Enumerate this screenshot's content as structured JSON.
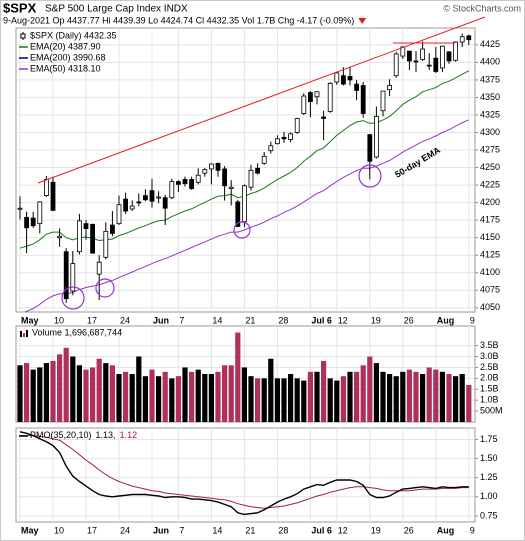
{
  "chart_data": [
    {
      "type": "candlestick",
      "title": "$SPX",
      "subtitle": "S&P 500 Large Cap Index INDX",
      "source": "© StockCharts.com",
      "quote": "9-Aug-2021   Op 4437.77   Hi 4439.39   Lo 4424.74   Cl 4432.35   Vol 1.7B   Chg -4.17 (-0.09%)",
      "name": "$SPX (Daily) 4432.35",
      "color": "#000000",
      "annotation": "50-day EMA",
      "annotation_color": "#9932cc",
      "categories": [
        "May",
        null,
        null,
        null,
        null,
        "10",
        null,
        null,
        null,
        null,
        "17",
        null,
        null,
        null,
        null,
        "24",
        null,
        null,
        null,
        null,
        "Jun",
        null,
        null,
        null,
        "7",
        null,
        null,
        null,
        null,
        "14",
        null,
        null,
        null,
        null,
        "21",
        null,
        null,
        null,
        null,
        "28",
        null,
        null,
        null,
        null,
        "Jul 6",
        null,
        null,
        null,
        "12",
        null,
        null,
        null,
        null,
        "19",
        null,
        null,
        null,
        null,
        "26",
        null,
        null,
        null,
        null,
        "Aug",
        null,
        null,
        null,
        null,
        "9"
      ],
      "open": [
        4191,
        4179,
        4178,
        4170,
        4210,
        4229,
        4150,
        4130,
        4074,
        4130,
        4170,
        4169,
        4098,
        4122,
        4168,
        4170,
        4205,
        4191,
        4201,
        4210,
        4217,
        4207,
        4207,
        4207,
        4230,
        4233,
        4233,
        4229,
        4242,
        4248,
        4256,
        4248,
        4220,
        4201,
        4173,
        4222,
        4249,
        4256,
        4274,
        4284,
        4293,
        4290,
        4300,
        4327,
        4357,
        4351,
        4322,
        4330,
        4372,
        4381,
        4380,
        4369,
        4367,
        4297,
        4265,
        4331,
        4361,
        4381,
        4409,
        4416,
        4402,
        4404,
        4396,
        4406,
        4392,
        4415,
        4403,
        4429,
        4437.77
      ],
      "high": [
        4209,
        4187,
        4187,
        4202,
        4238,
        4237,
        4163,
        4135,
        4131,
        4184,
        4175,
        4170,
        4125,
        4172,
        4188,
        4210,
        4214,
        4203,
        4213,
        4219,
        4234,
        4216,
        4211,
        4234,
        4232,
        4237,
        4237,
        4249,
        4249,
        4256,
        4257,
        4252,
        4232,
        4204,
        4226,
        4254,
        4256,
        4272,
        4287,
        4296,
        4301,
        4300,
        4321,
        4356,
        4359,
        4359,
        4331,
        4372,
        4386,
        4393,
        4394,
        4375,
        4372,
        4298,
        4337,
        4359,
        4376,
        4415,
        4423,
        4416,
        4416,
        4430,
        4413,
        4422,
        4423,
        4416,
        4430,
        4441,
        4439.39
      ],
      "low": [
        4176,
        4128,
        4164,
        4156,
        4208,
        4188,
        4137,
        4057,
        4068,
        4126,
        4147,
        4127,
        4061,
        4119,
        4152,
        4168,
        4184,
        4188,
        4195,
        4202,
        4193,
        4199,
        4168,
        4205,
        4215,
        4223,
        4218,
        4226,
        4237,
        4226,
        4237,
        4203,
        4196,
        4165,
        4165,
        4217,
        4240,
        4254,
        4270,
        4283,
        4285,
        4286,
        4298,
        4325,
        4322,
        4340,
        4289,
        4328,
        4368,
        4367,
        4367,
        4346,
        4321,
        4233,
        4263,
        4323,
        4352,
        4378,
        4405,
        4389,
        4386,
        4402,
        4389,
        4385,
        4386,
        4398,
        4401,
        4422,
        4424.74
      ],
      "close": [
        4192,
        4164,
        4167,
        4201,
        4233,
        4189,
        4152,
        4063,
        4113,
        4174,
        4163,
        4128,
        4115,
        4159,
        4156,
        4197,
        4188,
        4195,
        4200,
        4204,
        4202,
        4208,
        4192,
        4230,
        4226,
        4227,
        4220,
        4239,
        4247,
        4255,
        4246,
        4224,
        4222,
        4166,
        4224,
        4246,
        4242,
        4266,
        4281,
        4291,
        4291,
        4298,
        4320,
        4352,
        4344,
        4358,
        4320,
        4370,
        4385,
        4369,
        4375,
        4360,
        4327,
        4259,
        4323,
        4359,
        4367,
        4412,
        4422,
        4402,
        4401,
        4419,
        4395,
        4387,
        4423,
        4402,
        4429,
        4436.5,
        4432.35
      ],
      "series": [
        {
          "name": "EMA(20) 4387.90",
          "color": "#1a7a1a",
          "values": [
            4135,
            4138,
            4141,
            4147,
            4155,
            4158,
            4158,
            4150,
            4147,
            4150,
            4151,
            4149,
            4146,
            4147,
            4148,
            4153,
            4156,
            4160,
            4164,
            4167,
            4171,
            4174,
            4175,
            4180,
            4184,
            4188,
            4191,
            4196,
            4200,
            4205,
            4209,
            4210,
            4212,
            4207,
            4209,
            4213,
            4216,
            4221,
            4227,
            4233,
            4238,
            4243,
            4250,
            4259,
            4266,
            4274,
            4278,
            4287,
            4296,
            4303,
            4310,
            4315,
            4317,
            4313,
            4314,
            4318,
            4323,
            4331,
            4340,
            4346,
            4351,
            4358,
            4361,
            4364,
            4370,
            4373,
            4378,
            4383,
            4387.9
          ]
        },
        {
          "name": "EMA(200) 3990.68",
          "color": "#00008b"
        },
        {
          "name": "EMA(50) 4318.10",
          "color": "#9932cc",
          "values": [
            4040,
            4045,
            4049,
            4055,
            4062,
            4067,
            4070,
            4070,
            4072,
            4076,
            4079,
            4081,
            4083,
            4086,
            4089,
            4093,
            4097,
            4101,
            4105,
            4109,
            4113,
            4117,
            4120,
            4124,
            4128,
            4132,
            4136,
            4140,
            4144,
            4148,
            4152,
            4155,
            4158,
            4158,
            4161,
            4165,
            4168,
            4172,
            4177,
            4181,
            4186,
            4190,
            4195,
            4201,
            4207,
            4213,
            4217,
            4224,
            4230,
            4236,
            4241,
            4246,
            4249,
            4249,
            4252,
            4256,
            4260,
            4266,
            4272,
            4277,
            4282,
            4287,
            4291,
            4295,
            4300,
            4304,
            4309,
            4314,
            4318.1
          ]
        }
      ],
      "ylim": [
        4044,
        4449
      ],
      "yticks": [
        4050,
        4075,
        4100,
        4125,
        4150,
        4175,
        4200,
        4225,
        4250,
        4275,
        4300,
        4325,
        4350,
        4375,
        4400,
        4425
      ],
      "grid": true
    },
    {
      "type": "bar",
      "name": "Volume 1,696,687,744",
      "up_color": "#000000",
      "down_color": "#b0305a",
      "values": [
        2600000000.0,
        2700000000.0,
        2400000000.0,
        2500000000.0,
        2700000000.0,
        2800000000.0,
        3100000000.0,
        3400000000.0,
        3000000000.0,
        2600000000.0,
        2400000000.0,
        2500000000.0,
        2900000000.0,
        2700000000.0,
        2600000000.0,
        2200000000.0,
        2300000000.0,
        2200000000.0,
        3000000000.0,
        2100000000.0,
        2400000000.0,
        2100000000.0,
        2300000000.0,
        2000000000.0,
        2100000000.0,
        2500000000.0,
        2300000000.0,
        2400000000.0,
        2200000000.0,
        2200000000.0,
        2300000000.0,
        2600000000.0,
        2600000000.0,
        4100000000.0,
        2500000000.0,
        2100000000.0,
        2000000000.0,
        2000000000.0,
        2900000000.0,
        2000000000.0,
        2000000000.0,
        2200000000.0,
        2000000000.0,
        1900000000.0,
        2300000000.0,
        2300000000.0,
        2800000000.0,
        2000000000.0,
        1900000000.0,
        2100000000.0,
        2300000000.0,
        2300000000.0,
        2600000000.0,
        3000000000.0,
        2700000000.0,
        2300000000.0,
        2200000000.0,
        2100000000.0,
        2300000000.0,
        2400000000.0,
        2300000000.0,
        2200000000.0,
        2500000000.0,
        2400000000.0,
        2300000000.0,
        2200000000.0,
        2100000000.0,
        2200000000.0,
        1696687744
      ],
      "ylim": [
        0,
        4400000000.0
      ],
      "yticks": [
        {
          "value": 500000000.0,
          "label": "500M"
        },
        {
          "value": 1000000000.0,
          "label": "1.0B"
        },
        {
          "value": 1500000000.0,
          "label": "1.5B"
        },
        {
          "value": 2000000000.0,
          "label": "2.0B"
        },
        {
          "value": 2500000000.0,
          "label": "2.5B"
        },
        {
          "value": 3000000000.0,
          "label": "3.0B"
        },
        {
          "value": 3500000000.0,
          "label": "3.5B"
        }
      ],
      "grid": true
    },
    {
      "type": "line",
      "title": "PMO(35,20,10)",
      "categories": [
        "May",
        null,
        null,
        null,
        null,
        "10",
        null,
        null,
        null,
        null,
        "17",
        null,
        null,
        null,
        null,
        "24",
        null,
        null,
        null,
        null,
        "Jun",
        null,
        null,
        null,
        "7",
        null,
        null,
        null,
        null,
        "14",
        null,
        null,
        null,
        null,
        "21",
        null,
        null,
        null,
        null,
        "28",
        null,
        null,
        null,
        null,
        "Jul 6",
        null,
        null,
        null,
        "12",
        null,
        null,
        null,
        null,
        "19",
        null,
        null,
        null,
        null,
        "26",
        null,
        null,
        null,
        null,
        "Aug",
        null,
        null,
        null,
        null,
        "9"
      ],
      "series": [
        {
          "name": "1.13,",
          "color": "#000000",
          "values": [
            1.85,
            1.83,
            1.8,
            1.76,
            1.72,
            1.67,
            1.58,
            1.4,
            1.27,
            1.2,
            1.14,
            1.08,
            1.03,
            1.01,
            1.0,
            1.01,
            1.02,
            1.03,
            1.03,
            1.03,
            1.02,
            1.01,
            0.99,
            1.0,
            1.0,
            0.99,
            0.97,
            0.97,
            0.96,
            0.95,
            0.93,
            0.9,
            0.87,
            0.79,
            0.77,
            0.78,
            0.79,
            0.83,
            0.88,
            0.93,
            0.97,
            1.0,
            1.04,
            1.1,
            1.13,
            1.16,
            1.15,
            1.19,
            1.22,
            1.22,
            1.22,
            1.2,
            1.15,
            1.03,
            0.99,
            0.99,
            1.01,
            1.06,
            1.1,
            1.11,
            1.12,
            1.13,
            1.12,
            1.11,
            1.13,
            1.12,
            1.12,
            1.13,
            1.13
          ]
        },
        {
          "name": "1.12",
          "color": "#a0204a",
          "values": [
            1.8,
            1.8,
            1.8,
            1.79,
            1.78,
            1.76,
            1.74,
            1.68,
            1.62,
            1.55,
            1.48,
            1.42,
            1.35,
            1.29,
            1.24,
            1.2,
            1.17,
            1.14,
            1.12,
            1.1,
            1.08,
            1.07,
            1.05,
            1.04,
            1.03,
            1.02,
            1.01,
            1.0,
            0.99,
            0.98,
            0.97,
            0.96,
            0.94,
            0.91,
            0.89,
            0.87,
            0.86,
            0.85,
            0.86,
            0.87,
            0.88,
            0.9,
            0.92,
            0.95,
            0.98,
            1.01,
            1.03,
            1.06,
            1.08,
            1.1,
            1.12,
            1.13,
            1.13,
            1.12,
            1.11,
            1.09,
            1.08,
            1.08,
            1.08,
            1.08,
            1.09,
            1.1,
            1.1,
            1.1,
            1.11,
            1.11,
            1.11,
            1.12,
            1.12
          ]
        }
      ],
      "ylim": [
        0.67,
        1.9
      ],
      "yticks": [
        {
          "value": 0.75,
          "label": "0.75"
        },
        {
          "value": 1,
          "label": "1.00"
        },
        {
          "value": 1.25,
          "label": "1.25"
        },
        {
          "value": 1.5,
          "label": "1.50"
        },
        {
          "value": 1.75,
          "label": "1.75"
        }
      ],
      "grid": true
    }
  ]
}
